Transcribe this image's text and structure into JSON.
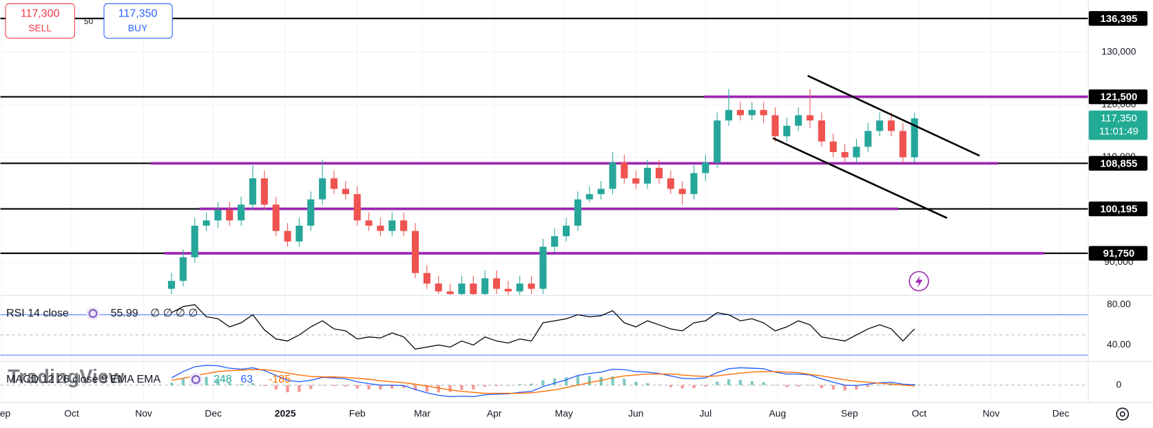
{
  "trade_panel": {
    "sell_price": "117,300",
    "sell_label": "SELL",
    "spread": "50",
    "buy_price": "117,350",
    "buy_label": "BUY"
  },
  "chart_data": [
    {
      "type": "candlestick",
      "watermark": "TradingView",
      "x": [
        73,
        78,
        83,
        88,
        93,
        98,
        103,
        108,
        113,
        118,
        123,
        128,
        133,
        138,
        143,
        148,
        153,
        158,
        163,
        168,
        173,
        178,
        183,
        188,
        193,
        198,
        203,
        208,
        213,
        218,
        223,
        228,
        233,
        238,
        243,
        248,
        253,
        258,
        263,
        268,
        273,
        278,
        283,
        288,
        293,
        298,
        303,
        308,
        313,
        318,
        323,
        328,
        333,
        338,
        343,
        348,
        353,
        358,
        363,
        368,
        373,
        378,
        383,
        388,
        393
      ],
      "open": [
        85000,
        86500,
        91000,
        97000,
        98000,
        100000,
        98000,
        101000,
        106000,
        101000,
        96000,
        94000,
        97000,
        102000,
        106000,
        104000,
        103000,
        98000,
        97000,
        96000,
        98000,
        96000,
        88000,
        86000,
        84500,
        84000,
        86000,
        84000,
        87000,
        85000,
        84500,
        86000,
        85000,
        93000,
        95000,
        97000,
        102000,
        103000,
        104000,
        109000,
        106000,
        105000,
        108000,
        106000,
        104000,
        103000,
        107000,
        109000,
        117000,
        119000,
        118000,
        119000,
        118000,
        114000,
        116000,
        118000,
        117000,
        113000,
        111000,
        110000,
        112000,
        115000,
        117000,
        115000,
        110000
      ],
      "high": [
        88000,
        92500,
        98500,
        99500,
        101500,
        101500,
        102500,
        108500,
        107500,
        102500,
        97500,
        98500,
        103500,
        109500,
        107500,
        105500,
        104500,
        99500,
        98500,
        99500,
        99500,
        97500,
        89500,
        87500,
        86000,
        87500,
        87500,
        88500,
        88500,
        86500,
        87500,
        87500,
        94500,
        96500,
        98500,
        103500,
        104500,
        105500,
        111000,
        110500,
        107500,
        109500,
        109500,
        107500,
        105500,
        108500,
        110500,
        118500,
        123000,
        120500,
        120500,
        120500,
        119500,
        117500,
        119500,
        123000,
        118500,
        114500,
        112500,
        113500,
        116500,
        118500,
        118500,
        116500,
        118500
      ],
      "low": [
        84000,
        85500,
        90000,
        96000,
        96500,
        97000,
        97000,
        100000,
        100000,
        95000,
        93000,
        93000,
        96000,
        101000,
        103000,
        102000,
        97000,
        96000,
        95000,
        95000,
        95000,
        87000,
        85000,
        84000,
        83800,
        83800,
        83800,
        83800,
        84000,
        83800,
        83800,
        84000,
        84000,
        92000,
        94000,
        96000,
        101500,
        102000,
        103000,
        105000,
        104000,
        104000,
        105000,
        103000,
        101000,
        102000,
        105500,
        108000,
        116000,
        117000,
        117000,
        116500,
        113000,
        113000,
        115000,
        115500,
        112000,
        110000,
        109000,
        109000,
        111000,
        114000,
        114000,
        109000,
        109000
      ],
      "close": [
        86500,
        91000,
        97000,
        98000,
        100000,
        98000,
        101000,
        106000,
        101000,
        96000,
        94000,
        97000,
        102000,
        106000,
        104000,
        103000,
        98000,
        97000,
        96000,
        98000,
        96000,
        88000,
        86000,
        84500,
        84000,
        86000,
        84000,
        87000,
        85000,
        84500,
        86000,
        85000,
        93000,
        95000,
        97000,
        102000,
        103000,
        104000,
        109000,
        106000,
        105000,
        108000,
        106000,
        104000,
        103000,
        107000,
        109000,
        117000,
        119000,
        118000,
        119000,
        118000,
        114000,
        116000,
        118000,
        117000,
        113000,
        111000,
        110000,
        112000,
        115000,
        117000,
        115000,
        110000,
        117400
      ],
      "up_color": "#26a69a",
      "down_color": "#ef5350",
      "xlim": [
        -0.7,
        467.7
      ],
      "xticks": [
        {
          "value": 0,
          "label": "Sep"
        },
        {
          "value": 30,
          "label": "Oct"
        },
        {
          "value": 61,
          "label": "Nov"
        },
        {
          "value": 91,
          "label": "Dec"
        },
        {
          "value": 122,
          "label": "2025"
        },
        {
          "value": 153,
          "label": "Feb"
        },
        {
          "value": 181,
          "label": "Mar"
        },
        {
          "value": 212,
          "label": "Apr"
        },
        {
          "value": 242,
          "label": "May"
        },
        {
          "value": 273,
          "label": "Jun"
        },
        {
          "value": 303,
          "label": "Jul"
        },
        {
          "value": 334,
          "label": "Aug"
        },
        {
          "value": 365,
          "label": "Sep"
        },
        {
          "value": 395,
          "label": "Oct"
        },
        {
          "value": 426,
          "label": "Nov"
        },
        {
          "value": 456,
          "label": "Dec"
        }
      ],
      "ylim": [
        83800,
        139900
      ],
      "yticks": [
        {
          "value": 90000,
          "label": "90,000"
        },
        {
          "value": 100000,
          "label": "100,000"
        },
        {
          "value": 110000,
          "label": "110,000"
        },
        {
          "value": 120000,
          "label": "120,000"
        },
        {
          "value": 130000,
          "label": "130,000"
        }
      ],
      "grid": true,
      "levels": [
        {
          "value": 136395,
          "label": "136,395"
        },
        {
          "value": 121500,
          "label": "121,500",
          "zone": [
            302.5,
            467.7
          ]
        },
        {
          "value": 108855,
          "label": "108,855",
          "zone": [
            64,
            429
          ]
        },
        {
          "value": 100195,
          "label": "100,195",
          "zone": [
            85,
            386
          ]
        },
        {
          "value": 91750,
          "label": "91,750",
          "zone": [
            70,
            449
          ]
        }
      ],
      "level_color": "#000000",
      "zone_color": "#9c27b0",
      "trendlines": [
        {
          "x": [
            347,
            421
          ],
          "y": [
            125500,
            110300
          ]
        },
        {
          "x": [
            332,
            407
          ],
          "y": [
            113650,
            98450
          ]
        }
      ],
      "last_price": {
        "value": 117350,
        "label": "117,350"
      },
      "countdown": "11:01:49",
      "last_color": "#22ab94"
    },
    {
      "type": "line",
      "title": "RSI 14 close",
      "placeholders": "∅ ∅ ∅ ∅",
      "color": "#000000",
      "values": [
        72,
        78,
        80,
        68,
        66,
        58,
        62,
        70,
        55,
        46,
        44,
        50,
        58,
        64,
        56,
        54,
        46,
        48,
        47,
        52,
        48,
        36,
        38,
        40,
        38,
        44,
        40,
        48,
        44,
        42,
        46,
        44,
        62,
        64,
        66,
        70,
        68,
        69,
        74,
        62,
        58,
        64,
        60,
        56,
        54,
        62,
        64,
        72,
        70,
        64,
        66,
        62,
        54,
        58,
        64,
        60,
        48,
        46,
        44,
        50,
        56,
        60,
        56,
        44,
        55.99
      ],
      "ylim": [
        24,
        88.7
      ],
      "yticks": [
        {
          "value": 40,
          "label": "40.00"
        },
        {
          "value": 80,
          "label": "80.00"
        }
      ],
      "bands": [
        30,
        70
      ],
      "band_color": "#2962ff",
      "midline": 50
    },
    {
      "type": "macd",
      "title": "MACD 12 26 close 9 EMA EMA",
      "histogram": {
        "up_color": "#26a69a",
        "down_color": "#ef5350",
        "values": [
          500,
          1400,
          1900,
          1700,
          1200,
          500,
          200,
          400,
          -200,
          -900,
          -1500,
          -1400,
          -800,
          -100,
          -200,
          -300,
          -700,
          -900,
          -900,
          -700,
          -600,
          -1100,
          -1400,
          -1500,
          -1400,
          -1000,
          -900,
          -300,
          -200,
          -100,
          200,
          300,
          1000,
          1400,
          1600,
          2000,
          1900,
          1700,
          1800,
          1300,
          700,
          400,
          100,
          -400,
          -700,
          -600,
          -300,
          700,
          1200,
          1100,
          800,
          600,
          -100,
          -400,
          -300,
          -100,
          -600,
          -900,
          -1100,
          -900,
          -400,
          100,
          400,
          200,
          248
        ]
      },
      "series": [
        {
          "color": "#2962ff",
          "values": [
            1500,
            2800,
            3800,
            4100,
            4000,
            3500,
            3300,
            3600,
            3000,
            2000,
            1000,
            700,
            1000,
            1600,
            1500,
            1300,
            700,
            300,
            0,
            0,
            -100,
            -900,
            -1600,
            -2100,
            -2400,
            -2300,
            -2400,
            -2000,
            -1900,
            -1800,
            -1500,
            -1300,
            -300,
            400,
            1100,
            2000,
            2400,
            2700,
            3300,
            3200,
            2800,
            2700,
            2400,
            1900,
            1400,
            1300,
            1500,
            2600,
            3400,
            3600,
            3500,
            3400,
            2700,
            2300,
            2300,
            2100,
            1300,
            600,
            0,
            -100,
            200,
            500,
            600,
            200,
            63
          ]
        },
        {
          "color": "#ff6d00",
          "values": [
            1000,
            1400,
            1900,
            2400,
            2800,
            3000,
            3100,
            3200,
            3200,
            2900,
            2500,
            2100,
            1800,
            1700,
            1700,
            1600,
            1400,
            1200,
            900,
            700,
            500,
            200,
            -200,
            -600,
            -1000,
            -1300,
            -1500,
            -1700,
            -1700,
            -1700,
            -1700,
            -1600,
            -1300,
            -1000,
            -500,
            0,
            500,
            1000,
            1500,
            1900,
            2100,
            2300,
            2300,
            2300,
            2100,
            1900,
            1800,
            1900,
            2200,
            2500,
            2700,
            2800,
            2800,
            2700,
            2600,
            2200,
            1900,
            1500,
            1100,
            800,
            600,
            400,
            200,
            0,
            -185
          ]
        }
      ],
      "ylim": [
        -2500,
        4500
      ],
      "yticks": [
        0
      ]
    }
  ]
}
